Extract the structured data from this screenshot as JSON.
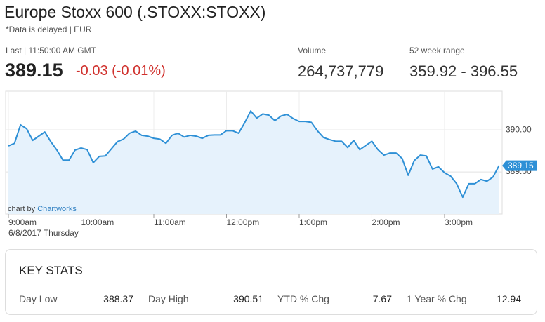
{
  "header": {
    "title": "Europe Stoxx 600 (.STOXX:STOXX)",
    "note": "*Data is delayed | EUR"
  },
  "quote": {
    "last_label": "Last | 11:50:00 AM GMT",
    "last": "389.15",
    "change": "-0.03 (-0.01%)",
    "volume_label": "Volume",
    "volume": "264,737,779",
    "range_label": "52 week range",
    "range": "359.92 - 396.55"
  },
  "chart_data": {
    "type": "line",
    "categories": [
      "9:00am",
      null,
      null,
      null,
      null,
      null,
      null,
      null,
      null,
      null,
      null,
      null,
      "10:00am",
      null,
      null,
      null,
      null,
      null,
      null,
      null,
      null,
      null,
      null,
      null,
      "11:00am",
      null,
      null,
      null,
      null,
      null,
      null,
      null,
      null,
      null,
      null,
      null,
      "12:00pm",
      null,
      null,
      null,
      null,
      null,
      null,
      null,
      null,
      null,
      null,
      null,
      "1:00pm",
      null,
      null,
      null,
      null,
      null,
      null,
      null,
      null,
      null,
      null,
      null,
      "2:00pm",
      null,
      null,
      null,
      null,
      null,
      null,
      null,
      null,
      null,
      null,
      null,
      "3:00pm",
      null,
      null,
      null,
      null,
      null,
      null,
      null,
      null,
      null
    ],
    "values": [
      389.62,
      389.68,
      390.12,
      390.03,
      389.75,
      389.85,
      389.95,
      389.72,
      389.52,
      389.28,
      389.28,
      389.52,
      389.57,
      389.53,
      389.22,
      389.37,
      389.38,
      389.55,
      389.72,
      389.78,
      389.92,
      389.97,
      389.87,
      389.85,
      389.8,
      389.78,
      389.68,
      389.87,
      389.92,
      389.83,
      389.87,
      389.85,
      389.8,
      389.87,
      389.88,
      389.88,
      389.98,
      389.98,
      389.92,
      390.17,
      390.45,
      390.28,
      390.38,
      390.35,
      390.22,
      390.33,
      390.37,
      390.27,
      390.2,
      390.2,
      390.18,
      389.98,
      389.82,
      389.77,
      389.73,
      389.73,
      389.58,
      389.75,
      389.53,
      389.63,
      389.73,
      389.53,
      389.4,
      389.45,
      389.45,
      389.32,
      388.92,
      389.27,
      389.4,
      389.38,
      389.07,
      389.12,
      388.98,
      388.9,
      388.72,
      388.4,
      388.72,
      388.72,
      388.82,
      388.78,
      388.88,
      389.15
    ],
    "color": "#2e90d6",
    "ylim": [
      388,
      390.92
    ],
    "yticks": [
      {
        "value": 390,
        "label": "390.00"
      },
      {
        "value": 389,
        "label": "389.00"
      }
    ],
    "grid": true,
    "credit_prefix": "chart by",
    "credit_link": "Chartworks",
    "date_label": "6/8/2017 Thursday"
  },
  "key_stats": {
    "title": "KEY STATS",
    "items": [
      {
        "label": "Day Low",
        "value": "388.37"
      },
      {
        "label": "Day High",
        "value": "390.51"
      },
      {
        "label": "YTD % Chg",
        "value": "7.67"
      },
      {
        "label": "1 Year % Chg",
        "value": "12.94"
      }
    ]
  }
}
